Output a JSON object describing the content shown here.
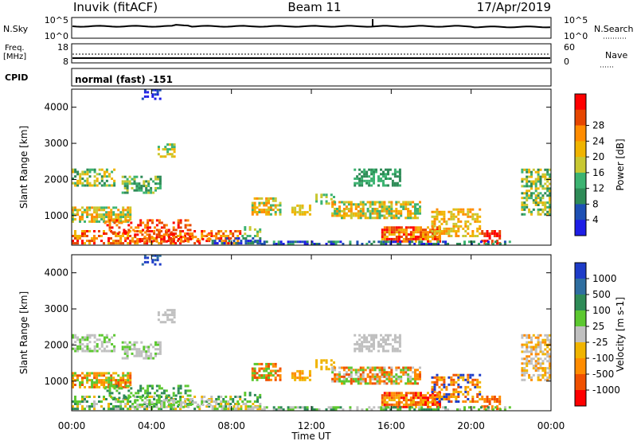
{
  "header": {
    "station": "Inuvik (fitACF)",
    "beam": "Beam 11",
    "date": "17/Apr/2019"
  },
  "noise_panel": {
    "left_label": "N.Sky",
    "right_label": "N.Search",
    "left_ticks": [
      "10^5",
      "10^0"
    ],
    "right_ticks": [
      "10^5",
      "10^0"
    ]
  },
  "freq_panel": {
    "left_label_line1": "Freq.",
    "left_label_line2": "[MHz]",
    "left_ticks": [
      "18",
      "8"
    ],
    "right_label": "Nave",
    "right_ticks": [
      "60",
      "0"
    ]
  },
  "cpid": {
    "label": "CPID",
    "value": "normal (fast) -151"
  },
  "colors": {
    "power_scale": [
      "#1e1ee6",
      "#1e50b4",
      "#2e8b57",
      "#3cb371",
      "#c8c832",
      "#f0b400",
      "#ff8c00",
      "#e64600",
      "#ff0000"
    ],
    "velocity_scale": [
      "#1e3cc8",
      "#2e6ea0",
      "#2e8b57",
      "#5cc830",
      "#c0c0c0",
      "#f0b400",
      "#ff8c00",
      "#f05000",
      "#ff0000"
    ]
  },
  "chart_data": [
    {
      "type": "heatmap",
      "panel": "power",
      "ylabel": "Slant Range [km]",
      "xlabel": "",
      "colorbar_label": "Power [dB]",
      "colorbar_ticks": [
        "4",
        "8",
        "12",
        "16",
        "20",
        "24",
        "28"
      ],
      "x_ticks": [
        "00:00",
        "04:00",
        "08:00",
        "12:00",
        "16:00",
        "20:00",
        "00:00"
      ],
      "y_ticks": [
        "1000",
        "2000",
        "3000",
        "4000"
      ],
      "ylim": [
        180,
        4500
      ]
    },
    {
      "type": "heatmap",
      "panel": "velocity",
      "ylabel": "Slant Range [km]",
      "xlabel": "Time UT",
      "colorbar_label": "Velocity [m s-1]",
      "colorbar_ticks": [
        "1000",
        "500",
        "100",
        "25",
        "-25",
        "-100",
        "-500",
        "-1000"
      ],
      "x_ticks": [
        "00:00",
        "04:00",
        "08:00",
        "12:00",
        "16:00",
        "20:00",
        "00:00"
      ],
      "y_ticks": [
        "1000",
        "2000",
        "3000",
        "4000"
      ],
      "ylim": [
        180,
        4500
      ]
    }
  ]
}
